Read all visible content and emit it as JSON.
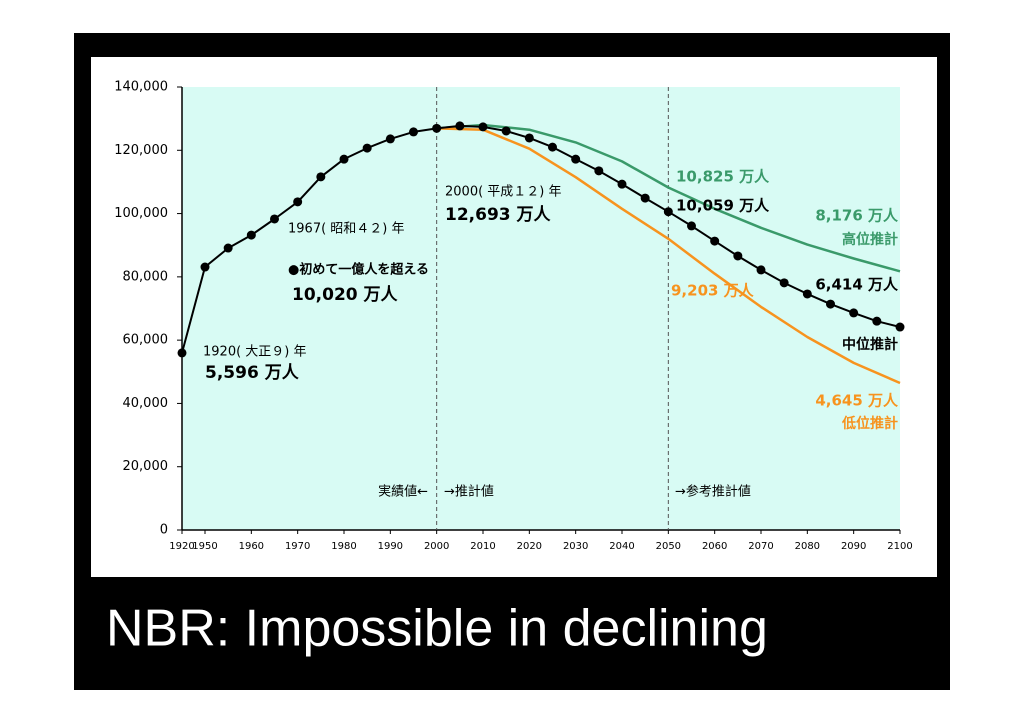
{
  "chart_data": {
    "type": "line",
    "caption": "NBR: Impossible in declining",
    "xticks": [
      1920,
      1950,
      1960,
      1970,
      1980,
      1990,
      2000,
      2010,
      2020,
      2030,
      2040,
      2050,
      2060,
      2070,
      2080,
      2090,
      2100
    ],
    "ylim": [
      0,
      140000
    ],
    "yticks": [
      0,
      {
        "value": 20000,
        "label": "20,000"
      },
      {
        "value": 40000,
        "label": "40,000"
      },
      {
        "value": 60000,
        "label": "60,000"
      },
      {
        "value": 80000,
        "label": "80,000"
      },
      {
        "value": 100000,
        "label": "100,000"
      },
      {
        "value": 120000,
        "label": "120,000"
      },
      {
        "value": 140000,
        "label": "140,000"
      }
    ],
    "series": [
      {
        "name": "高位推計",
        "color": "#3a9a6a",
        "markers": false,
        "x": [
          2000,
          2010,
          2020,
          2030,
          2040,
          2050,
          2060,
          2070,
          2080,
          2090,
          2100
        ],
        "values": [
          126930,
          128000,
          126500,
          122500,
          116500,
          108250,
          101500,
          95500,
          90200,
          85800,
          81760
        ]
      },
      {
        "name": "低位推計",
        "color": "#f7931e",
        "markers": false,
        "x": [
          2000,
          2010,
          2020,
          2030,
          2040,
          2050,
          2060,
          2070,
          2080,
          2090,
          2100
        ],
        "values": [
          126930,
          126500,
          120500,
          111500,
          101500,
          92030,
          81000,
          70500,
          61000,
          52800,
          46450
        ]
      },
      {
        "name": "中位推計",
        "color": "#000000",
        "markers": true,
        "x": [
          1920,
          1950,
          1955,
          1960,
          1965,
          1970,
          1975,
          1980,
          1985,
          1990,
          1995,
          2000,
          2005,
          2010,
          2015,
          2020,
          2025,
          2030,
          2035,
          2040,
          2045,
          2050,
          2055,
          2060,
          2065,
          2070,
          2075,
          2080,
          2085,
          2090,
          2095,
          2100
        ],
        "values": [
          55960,
          83100,
          89100,
          93200,
          98300,
          103700,
          111600,
          117200,
          120700,
          123600,
          125800,
          126930,
          127700,
          127400,
          126100,
          123900,
          121000,
          117200,
          113500,
          109300,
          104900,
          100590,
          96100,
          91300,
          86600,
          82200,
          78100,
          74600,
          71400,
          68600,
          66000,
          64140
        ]
      }
    ],
    "annotations": [
      {
        "text": "1920( 大正９) 年",
        "color": "#000000"
      },
      {
        "text": "5,596 万人",
        "color": "#000000"
      },
      {
        "text": "1967( 昭和４２) 年",
        "color": "#000000"
      },
      {
        "text": "●初めて一億人を超える",
        "color": "#000000"
      },
      {
        "text": "10,020 万人",
        "color": "#000000"
      },
      {
        "text": "2000( 平成１２) 年",
        "color": "#000000"
      },
      {
        "text": "12,693 万人",
        "color": "#000000"
      },
      {
        "text": "10,825 万人",
        "color": "#3a9a6a"
      },
      {
        "text": "10,059 万人",
        "color": "#000000"
      },
      {
        "text": "8,176 万人",
        "color": "#3a9a6a"
      },
      {
        "text": "9,203 万人",
        "color": "#f7931e"
      },
      {
        "text": "6,414 万人",
        "color": "#000000"
      },
      {
        "text": "4,645 万人",
        "color": "#f7931e"
      },
      {
        "text": "実績値←",
        "color": "#000000"
      },
      {
        "text": "→推計値",
        "color": "#000000"
      },
      {
        "text": "→参考推計値",
        "color": "#000000"
      }
    ]
  }
}
